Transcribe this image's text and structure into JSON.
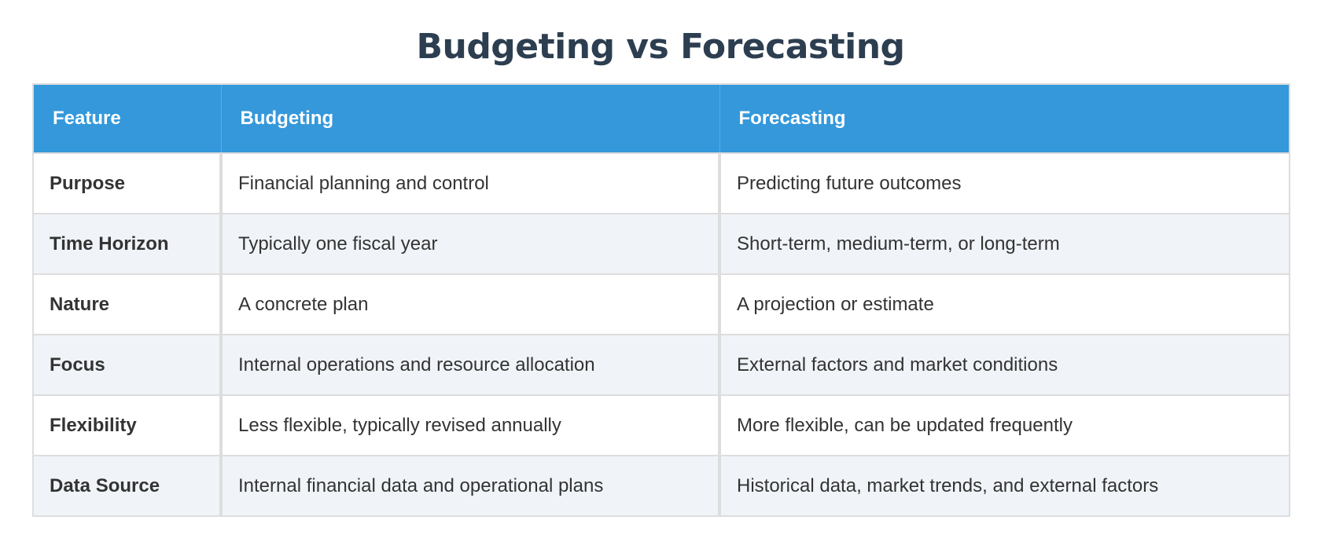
{
  "title": "Budgeting vs Forecasting",
  "colors": {
    "header_bg": "#3498db",
    "title_text": "#2c3e50",
    "alt_row_bg": "#f0f4f8",
    "border": "#dddddd",
    "body_text": "#333333"
  },
  "table": {
    "headers": [
      "Feature",
      "Budgeting",
      "Forecasting"
    ],
    "rows": [
      [
        "Purpose",
        "Financial planning and control",
        "Predicting future outcomes"
      ],
      [
        "Time Horizon",
        "Typically one fiscal year",
        "Short-term, medium-term, or long-term"
      ],
      [
        "Nature",
        "A concrete plan",
        "A projection or estimate"
      ],
      [
        "Focus",
        "Internal operations and resource allocation",
        "External factors and market conditions"
      ],
      [
        "Flexibility",
        "Less flexible, typically revised annually",
        "More flexible, can be updated frequently"
      ],
      [
        "Data Source",
        "Internal financial data and operational plans",
        "Historical data, market trends, and external factors"
      ]
    ]
  }
}
